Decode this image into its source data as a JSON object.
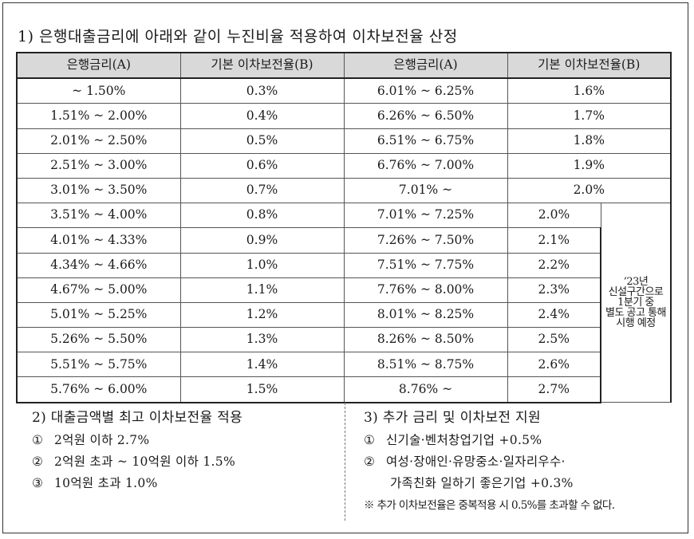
{
  "title": "1) 은행대출금리에 아래와 같이 누진비율 적용하여 이차보전율 산정",
  "table": {
    "headers": [
      "은행금리(A)",
      "기본 이차보전율(B)",
      "은행금리(A)",
      "기본 이차보전율(B)"
    ],
    "rows": [
      [
        "~ 1.50%",
        "0.3%",
        "6.01% ~ 6.25%",
        "1.6%"
      ],
      [
        "1.51% ~ 2.00%",
        "0.4%",
        "6.26% ~ 6.50%",
        "1.7%"
      ],
      [
        "2.01% ~ 2.50%",
        "0.5%",
        "6.51% ~ 6.75%",
        "1.8%"
      ],
      [
        "2.51% ~ 3.00%",
        "0.6%",
        "6.76% ~ 7.00%",
        "1.9%"
      ],
      [
        "3.01% ~ 3.50%",
        "0.7%",
        "7.01% ~",
        "2.0%"
      ],
      [
        "3.51% ~ 4.00%",
        "0.8%",
        "7.01% ~ 7.25%",
        "2.0%"
      ],
      [
        "4.01% ~ 4.33%",
        "0.9%",
        "7.26% ~ 7.50%",
        "2.1%"
      ],
      [
        "4.34% ~ 4.66%",
        "1.0%",
        "7.51% ~ 7.75%",
        "2.2%"
      ],
      [
        "4.67% ~ 5.00%",
        "1.1%",
        "7.76% ~ 8.00%",
        "2.3%"
      ],
      [
        "5.01% ~ 5.25%",
        "1.2%",
        "8.01% ~ 8.25%",
        "2.4%"
      ],
      [
        "5.26% ~ 5.50%",
        "1.3%",
        "8.26% ~ 8.50%",
        "2.5%"
      ],
      [
        "5.51% ~ 5.75%",
        "1.4%",
        "8.51% ~ 8.75%",
        "2.6%"
      ],
      [
        "5.76% ~ 6.00%",
        "1.5%",
        "8.76% ~",
        "2.7%"
      ]
    ],
    "note": [
      "’23년",
      "신설구간으로",
      "1분기 중",
      "별도 공고 통해",
      "시행 예정"
    ]
  },
  "section2": {
    "heading": "2) 대출금액별 최고 이차보전율 적용",
    "items": [
      {
        "num": "①",
        "text": "2억원 이하 2.7%"
      },
      {
        "num": "②",
        "text": "2억원 초과 ~ 10억원 이하 1.5%"
      },
      {
        "num": "③",
        "text": "10억원 초과 1.0%"
      }
    ]
  },
  "section3": {
    "heading": "3) 추가 금리 및 이차보전 지원",
    "items": [
      {
        "num": "①",
        "text": "신기술·벤처창업기업 +0.5%"
      },
      {
        "num": "②",
        "text": "여성·장애인·유망중소·일자리우수·"
      }
    ],
    "continuation": "가족친화 일하기 좋은기업 +0.3%",
    "note": "※ 추가 이차보전율은 중복적용 시 0.5%를 초과할 수 없다."
  }
}
